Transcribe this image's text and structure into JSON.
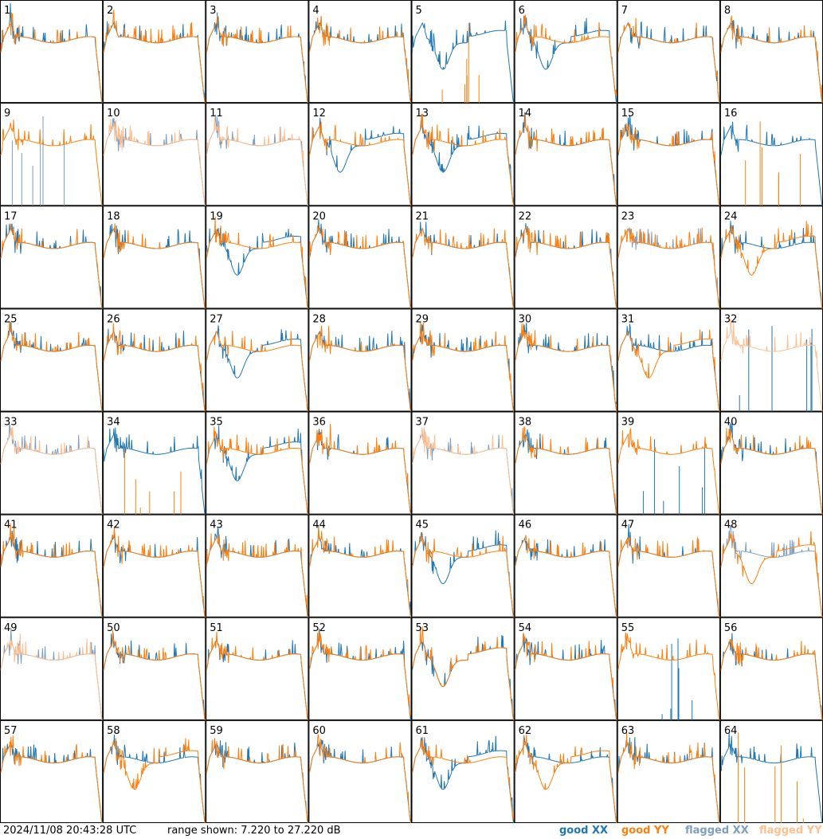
{
  "chart_data": {
    "type": "line",
    "title": "",
    "panel_labels": [
      "1",
      "2",
      "3",
      "4",
      "5",
      "6",
      "7",
      "8",
      "9",
      "10",
      "11",
      "12",
      "13",
      "14",
      "15",
      "16",
      "17",
      "18",
      "19",
      "20",
      "21",
      "22",
      "23",
      "24",
      "25",
      "26",
      "27",
      "28",
      "29",
      "30",
      "31",
      "32",
      "33",
      "34",
      "35",
      "36",
      "37",
      "38",
      "39",
      "40",
      "41",
      "42",
      "43",
      "44",
      "45",
      "46",
      "47",
      "48",
      "49",
      "50",
      "51",
      "52",
      "53",
      "54",
      "55",
      "56",
      "57",
      "58",
      "59",
      "60",
      "61",
      "62",
      "63",
      "64"
    ],
    "xlabel": "",
    "ylabel": "",
    "ylim": [
      7.22,
      27.22
    ],
    "grid": false,
    "legend_position": "bottom-right",
    "series": [
      {
        "name": "good XX",
        "color": "#1f77b4"
      },
      {
        "name": "good YY",
        "color": "#ff7f0e"
      },
      {
        "name": "flagged XX",
        "color": "#7f9fbf"
      },
      {
        "name": "flagged YY",
        "color": "#ffbf8f"
      }
    ],
    "panels": {
      "flagged_xx": [
        9,
        10,
        11,
        23,
        33,
        37,
        48,
        49
      ],
      "flagged_yy": [
        10,
        11,
        32,
        33,
        37,
        49
      ],
      "yy_spikes_low": [
        5,
        16,
        34,
        64
      ],
      "xx_spikes_low": [
        9,
        32,
        39,
        55
      ],
      "xx_dip_panels": [
        5,
        6,
        12,
        13,
        19,
        27,
        35,
        45,
        53,
        61
      ],
      "yy_dip_panels": [
        24,
        31,
        48,
        53,
        58,
        62
      ]
    }
  },
  "footer": {
    "timestamp": "2024/11/08 20:43:28 UTC",
    "range": "range shown: 7.220 to 27.220 dB"
  },
  "legend": {
    "good_xx": "good XX",
    "good_yy": "good YY",
    "flagged_xx": "flagged XX",
    "flagged_yy": "flagged YY",
    "colors": {
      "good_xx": "#1f77b4",
      "good_yy": "#ff7f0e",
      "flagged_xx": "#7f9fbf",
      "flagged_yy": "#ffbf8f"
    }
  }
}
